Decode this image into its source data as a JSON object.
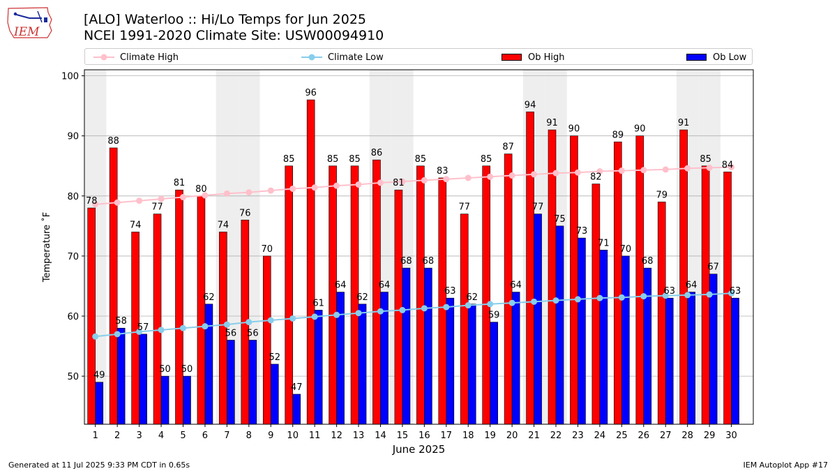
{
  "header": {
    "title_line1": "[ALO] Waterloo :: Hi/Lo Temps for Jun 2025",
    "title_line2": "NCEI 1991-2020 Climate Site: USW00094910",
    "logo_text": "IEM"
  },
  "footer": {
    "left": "Generated at 11 Jul 2025 9:33 PM CDT in 0.65s",
    "right": "IEM Autoplot App #17"
  },
  "colors": {
    "ob_high": "#ff0000",
    "ob_low": "#0000ff",
    "climate_high": "#ffc0cb",
    "climate_low": "#87ceeb",
    "weekend_band": "#eeeeee",
    "grid": "#b0b0b0"
  },
  "legend": {
    "placement": "top",
    "items": [
      {
        "label": "Climate High",
        "kind": "line",
        "series": "climate_high"
      },
      {
        "label": "Climate Low",
        "kind": "line",
        "series": "climate_low"
      },
      {
        "label": "Ob High",
        "kind": "bar",
        "series": "ob_high"
      },
      {
        "label": "Ob Low",
        "kind": "bar",
        "series": "ob_low"
      }
    ]
  },
  "chart_data": {
    "type": "bar",
    "title": "[ALO] Waterloo :: Hi/Lo Temps for Jun 2025",
    "subtitle": "NCEI 1991-2020 Climate Site: USW00094910",
    "xlabel": "June 2025",
    "ylabel": "Temperature ˚F",
    "ylim": [
      42,
      101
    ],
    "yticks": [
      50,
      60,
      70,
      80,
      90,
      100
    ],
    "grid": "y",
    "categories": [
      "1",
      "2",
      "3",
      "4",
      "5",
      "6",
      "7",
      "8",
      "9",
      "10",
      "11",
      "12",
      "13",
      "14",
      "15",
      "16",
      "17",
      "18",
      "19",
      "20",
      "21",
      "22",
      "23",
      "24",
      "25",
      "26",
      "27",
      "28",
      "29",
      "30"
    ],
    "weekend_days": [
      1,
      7,
      8,
      14,
      15,
      21,
      22,
      28,
      29
    ],
    "series": [
      {
        "name": "Ob High",
        "type": "bar",
        "values": [
          78,
          88,
          74,
          77,
          81,
          80,
          74,
          76,
          70,
          85,
          96,
          85,
          85,
          86,
          81,
          85,
          83,
          77,
          85,
          87,
          94,
          91,
          90,
          82,
          89,
          90,
          79,
          91,
          85,
          84
        ]
      },
      {
        "name": "Ob Low",
        "type": "bar",
        "values": [
          49,
          58,
          57,
          50,
          50,
          62,
          56,
          56,
          52,
          47,
          61,
          64,
          62,
          64,
          68,
          68,
          63,
          62,
          59,
          64,
          77,
          75,
          73,
          71,
          70,
          68,
          63,
          64,
          67,
          63
        ]
      },
      {
        "name": "Climate High",
        "type": "line",
        "values": [
          78.6,
          78.9,
          79.2,
          79.5,
          79.8,
          80.1,
          80.4,
          80.6,
          80.9,
          81.2,
          81.4,
          81.7,
          81.9,
          82.2,
          82.4,
          82.6,
          82.8,
          83.0,
          83.2,
          83.4,
          83.6,
          83.8,
          83.9,
          84.1,
          84.2,
          84.3,
          84.4,
          84.6,
          84.7,
          84.8
        ]
      },
      {
        "name": "Climate Low",
        "type": "line",
        "values": [
          56.6,
          57.0,
          57.4,
          57.7,
          58.0,
          58.3,
          58.6,
          59.0,
          59.3,
          59.6,
          59.9,
          60.2,
          60.5,
          60.8,
          61.0,
          61.3,
          61.5,
          61.8,
          62.0,
          62.2,
          62.4,
          62.6,
          62.8,
          63.0,
          63.1,
          63.3,
          63.4,
          63.5,
          63.6,
          63.8
        ]
      }
    ]
  }
}
